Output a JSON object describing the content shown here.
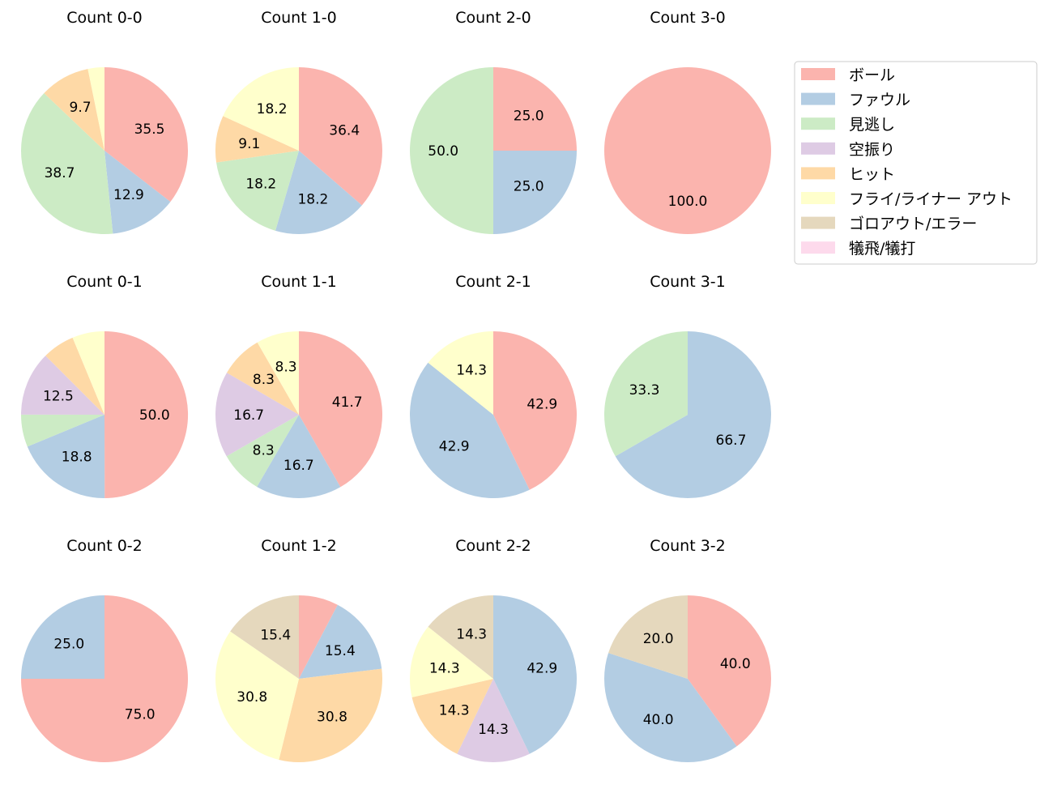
{
  "categories": [
    "ボール",
    "ファウル",
    "見逃し",
    "空振り",
    "ヒット",
    "フライ/ライナー アウト",
    "ゴロアウト/エラー",
    "犠飛/犠打"
  ],
  "colors": [
    "#fbb4ae",
    "#b3cde3",
    "#ccebc5",
    "#decbe4",
    "#fed9a6",
    "#ffffcc",
    "#e5d8bd",
    "#fddaec"
  ],
  "chart_data": [
    {
      "type": "pie",
      "title": "Count 0-0",
      "values": [
        35.5,
        12.9,
        38.7,
        0,
        9.7,
        3.2,
        0,
        0
      ],
      "labels": [
        "35.5",
        "12.9",
        "38.7",
        "",
        "9.7",
        "",
        "",
        ""
      ]
    },
    {
      "type": "pie",
      "title": "Count 1-0",
      "values": [
        36.4,
        18.2,
        18.2,
        0,
        9.1,
        18.2,
        0,
        0
      ],
      "labels": [
        "36.4",
        "18.2",
        "18.2",
        "",
        "9.1",
        "18.2",
        "",
        ""
      ]
    },
    {
      "type": "pie",
      "title": "Count 2-0",
      "values": [
        25.0,
        25.0,
        50.0,
        0,
        0,
        0,
        0,
        0
      ],
      "labels": [
        "25.0",
        "25.0",
        "50.0",
        "",
        "",
        "",
        "",
        ""
      ]
    },
    {
      "type": "pie",
      "title": "Count 3-0",
      "values": [
        100.0,
        0,
        0,
        0,
        0,
        0,
        0,
        0
      ],
      "labels": [
        "100.0",
        "",
        "",
        "",
        "",
        "",
        "",
        ""
      ]
    },
    {
      "type": "pie",
      "title": "Count 0-1",
      "values": [
        50.0,
        18.8,
        6.25,
        12.5,
        6.25,
        6.25,
        0,
        0
      ],
      "labels": [
        "50.0",
        "18.8",
        "",
        "12.5",
        "",
        "",
        "",
        ""
      ]
    },
    {
      "type": "pie",
      "title": "Count 1-1",
      "values": [
        41.7,
        16.7,
        8.3,
        16.7,
        8.3,
        8.3,
        0,
        0
      ],
      "labels": [
        "41.7",
        "16.7",
        "8.3",
        "16.7",
        "8.3",
        "8.3",
        "",
        ""
      ]
    },
    {
      "type": "pie",
      "title": "Count 2-1",
      "values": [
        42.9,
        42.9,
        0,
        0,
        0,
        14.3,
        0,
        0
      ],
      "labels": [
        "42.9",
        "42.9",
        "",
        "",
        "",
        "14.3",
        "",
        ""
      ]
    },
    {
      "type": "pie",
      "title": "Count 3-1",
      "values": [
        0,
        66.7,
        33.3,
        0,
        0,
        0,
        0,
        0
      ],
      "labels": [
        "",
        "66.7",
        "33.3",
        "",
        "",
        "",
        "",
        ""
      ]
    },
    {
      "type": "pie",
      "title": "Count 0-2",
      "values": [
        75.0,
        25.0,
        0,
        0,
        0,
        0,
        0,
        0
      ],
      "labels": [
        "75.0",
        "25.0",
        "",
        "",
        "",
        "",
        "",
        ""
      ]
    },
    {
      "type": "pie",
      "title": "Count 1-2",
      "values": [
        7.7,
        15.4,
        0,
        0,
        30.8,
        30.8,
        15.4,
        0
      ],
      "labels": [
        "",
        "15.4",
        "",
        "",
        "30.8",
        "30.8",
        "15.4",
        ""
      ]
    },
    {
      "type": "pie",
      "title": "Count 2-2",
      "values": [
        0,
        42.9,
        0,
        14.3,
        14.3,
        14.3,
        14.3,
        0
      ],
      "labels": [
        "",
        "42.9",
        "",
        "14.3",
        "14.3",
        "14.3",
        "14.3",
        ""
      ]
    },
    {
      "type": "pie",
      "title": "Count 3-2",
      "values": [
        40.0,
        40.0,
        0,
        0,
        0,
        0,
        20.0,
        0
      ],
      "labels": [
        "40.0",
        "40.0",
        "",
        "",
        "",
        "",
        "20.0",
        ""
      ]
    }
  ]
}
